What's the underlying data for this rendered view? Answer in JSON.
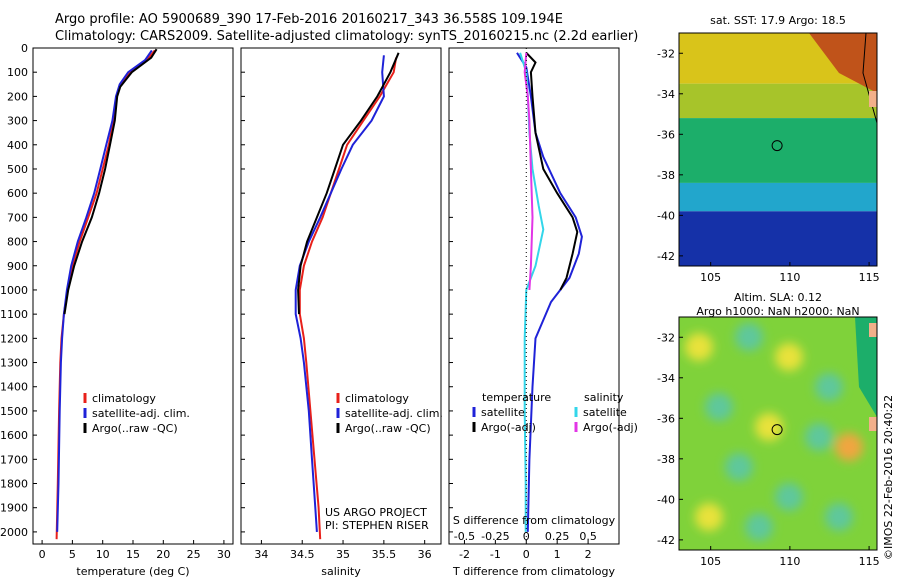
{
  "header": {
    "line1": "Argo profile: AO 5900689_390 17-Feb-2016 20160217_343 36.558S 109.194E",
    "line2": "Climatology: CARS2009. Satellite-adjusted climatology: synTS_20160215.nc (2.2d earlier)"
  },
  "stamp": "©IMOS 22-Feb-2016 20:40:22",
  "colors": {
    "climatology": "#e8201a",
    "satellite": "#1f22d8",
    "argo": "#000000",
    "sal_satellite": "#33d6ea",
    "sal_argo": "#e235e6"
  },
  "chart_data": [
    {
      "type": "line",
      "xlabel": "temperature (deg C)",
      "ylabel": "",
      "xlim": [
        -1.5,
        31.5
      ],
      "ylim": [
        2050,
        0
      ],
      "xticks": [
        "0",
        "5",
        "10",
        "15",
        "20",
        "25",
        "30"
      ],
      "yticks": [
        "0",
        "100",
        "200",
        "300",
        "400",
        "500",
        "600",
        "700",
        "800",
        "900",
        "1000",
        "1100",
        "1200",
        "1300",
        "1400",
        "1500",
        "1600",
        "1700",
        "1800",
        "1900",
        "2000"
      ],
      "legend": [
        "climatology",
        "satellite-adj. clim.",
        "Argo(..raw -QC)"
      ],
      "legend_position": "lower-right",
      "series": [
        {
          "name": "climatology",
          "color": "#e8201a",
          "points": [
            [
              18.6,
              10
            ],
            [
              17.3,
              50
            ],
            [
              14.5,
              100
            ],
            [
              13.0,
              150
            ],
            [
              12.3,
              200
            ],
            [
              11.8,
              300
            ],
            [
              11.0,
              400
            ],
            [
              10.0,
              500
            ],
            [
              9.0,
              600
            ],
            [
              7.6,
              700
            ],
            [
              6.2,
              800
            ],
            [
              5.0,
              900
            ],
            [
              4.2,
              1000
            ],
            [
              3.6,
              1100
            ],
            [
              3.2,
              1200
            ],
            [
              3.0,
              1300
            ],
            [
              2.8,
              1500
            ],
            [
              2.6,
              1800
            ],
            [
              2.4,
              2030
            ]
          ]
        },
        {
          "name": "satellite-adj. clim.",
          "color": "#1f22d8",
          "points": [
            [
              18.1,
              10
            ],
            [
              17.0,
              50
            ],
            [
              14.2,
              100
            ],
            [
              12.8,
              150
            ],
            [
              12.2,
              200
            ],
            [
              11.6,
              300
            ],
            [
              10.6,
              400
            ],
            [
              9.6,
              500
            ],
            [
              8.6,
              600
            ],
            [
              7.3,
              700
            ],
            [
              5.9,
              800
            ],
            [
              4.8,
              900
            ],
            [
              4.1,
              1000
            ],
            [
              3.6,
              1100
            ],
            [
              3.3,
              1200
            ],
            [
              3.1,
              1300
            ],
            [
              2.9,
              1500
            ],
            [
              2.7,
              1800
            ],
            [
              2.5,
              2000
            ]
          ]
        },
        {
          "name": "Argo(..raw -QC)",
          "color": "#000000",
          "points": [
            [
              18.9,
              5
            ],
            [
              18.0,
              40
            ],
            [
              14.8,
              100
            ],
            [
              12.9,
              160
            ],
            [
              12.4,
              200
            ],
            [
              12.0,
              300
            ],
            [
              11.2,
              400
            ],
            [
              10.4,
              500
            ],
            [
              9.4,
              600
            ],
            [
              8.2,
              700
            ],
            [
              6.6,
              800
            ],
            [
              5.3,
              900
            ],
            [
              4.3,
              1000
            ],
            [
              3.7,
              1100
            ]
          ]
        }
      ]
    },
    {
      "type": "line",
      "xlabel": "salinity",
      "ylabel": "",
      "xlim": [
        33.75,
        36.2
      ],
      "ylim": [
        2050,
        0
      ],
      "xticks": [
        "34",
        "34.5",
        "35",
        "35.5",
        "36"
      ],
      "legend": [
        "climatology",
        "satellite-adj. clim.",
        "Argo(..raw -QC)"
      ],
      "legend_position": "lower-right",
      "annotation": [
        "US ARGO PROJECT",
        "PI: STEPHEN RISER"
      ],
      "series": [
        {
          "name": "climatology",
          "color": "#e8201a",
          "points": [
            [
              35.65,
              40
            ],
            [
              35.62,
              100
            ],
            [
              35.45,
              200
            ],
            [
              35.25,
              300
            ],
            [
              35.05,
              400
            ],
            [
              34.95,
              500
            ],
            [
              34.85,
              600
            ],
            [
              34.75,
              700
            ],
            [
              34.62,
              800
            ],
            [
              34.52,
              900
            ],
            [
              34.47,
              1000
            ],
            [
              34.47,
              1100
            ],
            [
              34.52,
              1200
            ],
            [
              34.55,
              1300
            ],
            [
              34.6,
              1500
            ],
            [
              34.65,
              1700
            ],
            [
              34.7,
              1900
            ],
            [
              34.72,
              2030
            ]
          ]
        },
        {
          "name": "satellite-adj. clim.",
          "color": "#1f22d8",
          "points": [
            [
              35.5,
              30
            ],
            [
              35.48,
              100
            ],
            [
              35.5,
              200
            ],
            [
              35.35,
              300
            ],
            [
              35.12,
              400
            ],
            [
              34.98,
              500
            ],
            [
              34.85,
              600
            ],
            [
              34.72,
              700
            ],
            [
              34.58,
              800
            ],
            [
              34.47,
              900
            ],
            [
              34.42,
              1000
            ],
            [
              34.42,
              1100
            ],
            [
              34.48,
              1200
            ],
            [
              34.52,
              1300
            ],
            [
              34.58,
              1500
            ],
            [
              34.62,
              1700
            ],
            [
              34.66,
              1900
            ],
            [
              34.68,
              2000
            ]
          ]
        },
        {
          "name": "Argo(..raw -QC)",
          "color": "#000000",
          "points": [
            [
              35.68,
              20
            ],
            [
              35.58,
              100
            ],
            [
              35.42,
              200
            ],
            [
              35.22,
              300
            ],
            [
              35.0,
              400
            ],
            [
              34.9,
              500
            ],
            [
              34.8,
              600
            ],
            [
              34.68,
              700
            ],
            [
              34.56,
              800
            ],
            [
              34.48,
              900
            ],
            [
              34.45,
              1000
            ],
            [
              34.46,
              1100
            ]
          ]
        }
      ]
    },
    {
      "type": "line",
      "xlabel": "T difference from climatology",
      "top_axis_label": "S difference from climatology",
      "ylabel": "",
      "xlim": [
        -2.5,
        3.0
      ],
      "ylim": [
        2050,
        0
      ],
      "xticks": [
        "-2",
        "-1",
        "0",
        "1",
        "2"
      ],
      "top_xticks": [
        "-0.5",
        "-0.25",
        "0",
        "0.25",
        "0.5"
      ],
      "legend_groups": {
        "temperature": [
          "satellite",
          "Argo(-adj)"
        ],
        "salinity": [
          "satellite",
          "Argo(-adj)"
        ]
      },
      "legend_position": "lower",
      "series": [
        {
          "name": "satellite",
          "group": "temperature",
          "color": "#1f22d8",
          "points": [
            [
              -0.3,
              20
            ],
            [
              0.0,
              80
            ],
            [
              0.15,
              200
            ],
            [
              0.3,
              350
            ],
            [
              0.55,
              450
            ],
            [
              1.1,
              600
            ],
            [
              1.6,
              700
            ],
            [
              1.8,
              780
            ],
            [
              1.7,
              850
            ],
            [
              1.4,
              950
            ],
            [
              0.8,
              1050
            ],
            [
              0.3,
              1200
            ],
            [
              0.2,
              1400
            ],
            [
              0.1,
              1700
            ],
            [
              0.05,
              2000
            ]
          ]
        },
        {
          "name": "Argo(-adj)",
          "group": "temperature",
          "color": "#000000",
          "points": [
            [
              0.0,
              20
            ],
            [
              0.3,
              60
            ],
            [
              0.15,
              100
            ],
            [
              0.2,
              200
            ],
            [
              0.3,
              350
            ],
            [
              0.55,
              500
            ],
            [
              1.0,
              600
            ],
            [
              1.5,
              700
            ],
            [
              1.65,
              760
            ],
            [
              1.5,
              850
            ],
            [
              1.3,
              950
            ],
            [
              1.1,
              1000
            ]
          ]
        },
        {
          "name": "satellite",
          "group": "salinity",
          "color": "#33d6ea",
          "points": [
            [
              -0.2,
              20
            ],
            [
              0.0,
              100
            ],
            [
              0.05,
              200
            ],
            [
              0.1,
              350
            ],
            [
              0.2,
              500
            ],
            [
              0.4,
              650
            ],
            [
              0.55,
              750
            ],
            [
              0.3,
              900
            ],
            [
              0.0,
              1000
            ],
            [
              -0.05,
              1200
            ],
            [
              -0.05,
              1500
            ],
            [
              -0.02,
              1800
            ],
            [
              -0.02,
              2000
            ]
          ]
        },
        {
          "name": "Argo(-adj)",
          "group": "salinity",
          "color": "#e235e6",
          "points": [
            [
              0.0,
              20
            ],
            [
              -0.05,
              100
            ],
            [
              0.05,
              200
            ],
            [
              0.1,
              300
            ],
            [
              0.15,
              500
            ],
            [
              0.2,
              700
            ],
            [
              0.15,
              900
            ],
            [
              0.1,
              1000
            ]
          ]
        }
      ]
    },
    {
      "type": "heatmap",
      "title": "sat. SST: 17.9 Argo: 18.5",
      "xlim": [
        103,
        115.5
      ],
      "ylim": [
        -42.5,
        -31
      ],
      "xticks": [
        "105",
        "110",
        "115"
      ],
      "yticks": [
        "-32",
        "-34",
        "-36",
        "-38",
        "-40",
        "-42"
      ],
      "marker": {
        "lon": 109.194,
        "lat": -36.558
      },
      "bands": [
        {
          "lat_from": -31,
          "lat_to": -33.5,
          "color": "#d9c41a"
        },
        {
          "lat_from": -33.5,
          "lat_to": -35.2,
          "color": "#a7c42a"
        },
        {
          "lat_from": -35.2,
          "lat_to": -38.4,
          "color": "#1cae6a"
        },
        {
          "lat_from": -38.4,
          "lat_to": -39.8,
          "color": "#22a6cc"
        },
        {
          "lat_from": -39.8,
          "lat_to": -42.5,
          "color": "#1531a8"
        }
      ]
    },
    {
      "type": "heatmap",
      "title": "Altim. SLA: 0.12",
      "subtitle": "Argo h1000: NaN h2000: NaN",
      "xlim": [
        103,
        115.5
      ],
      "ylim": [
        -42.5,
        -31
      ],
      "xticks": [
        "105",
        "110",
        "115"
      ],
      "yticks": [
        "-32",
        "-34",
        "-36",
        "-38",
        "-40",
        "-42"
      ],
      "marker": {
        "lon": 109.194,
        "lat": -36.558
      },
      "background": "#7fd23a"
    }
  ]
}
